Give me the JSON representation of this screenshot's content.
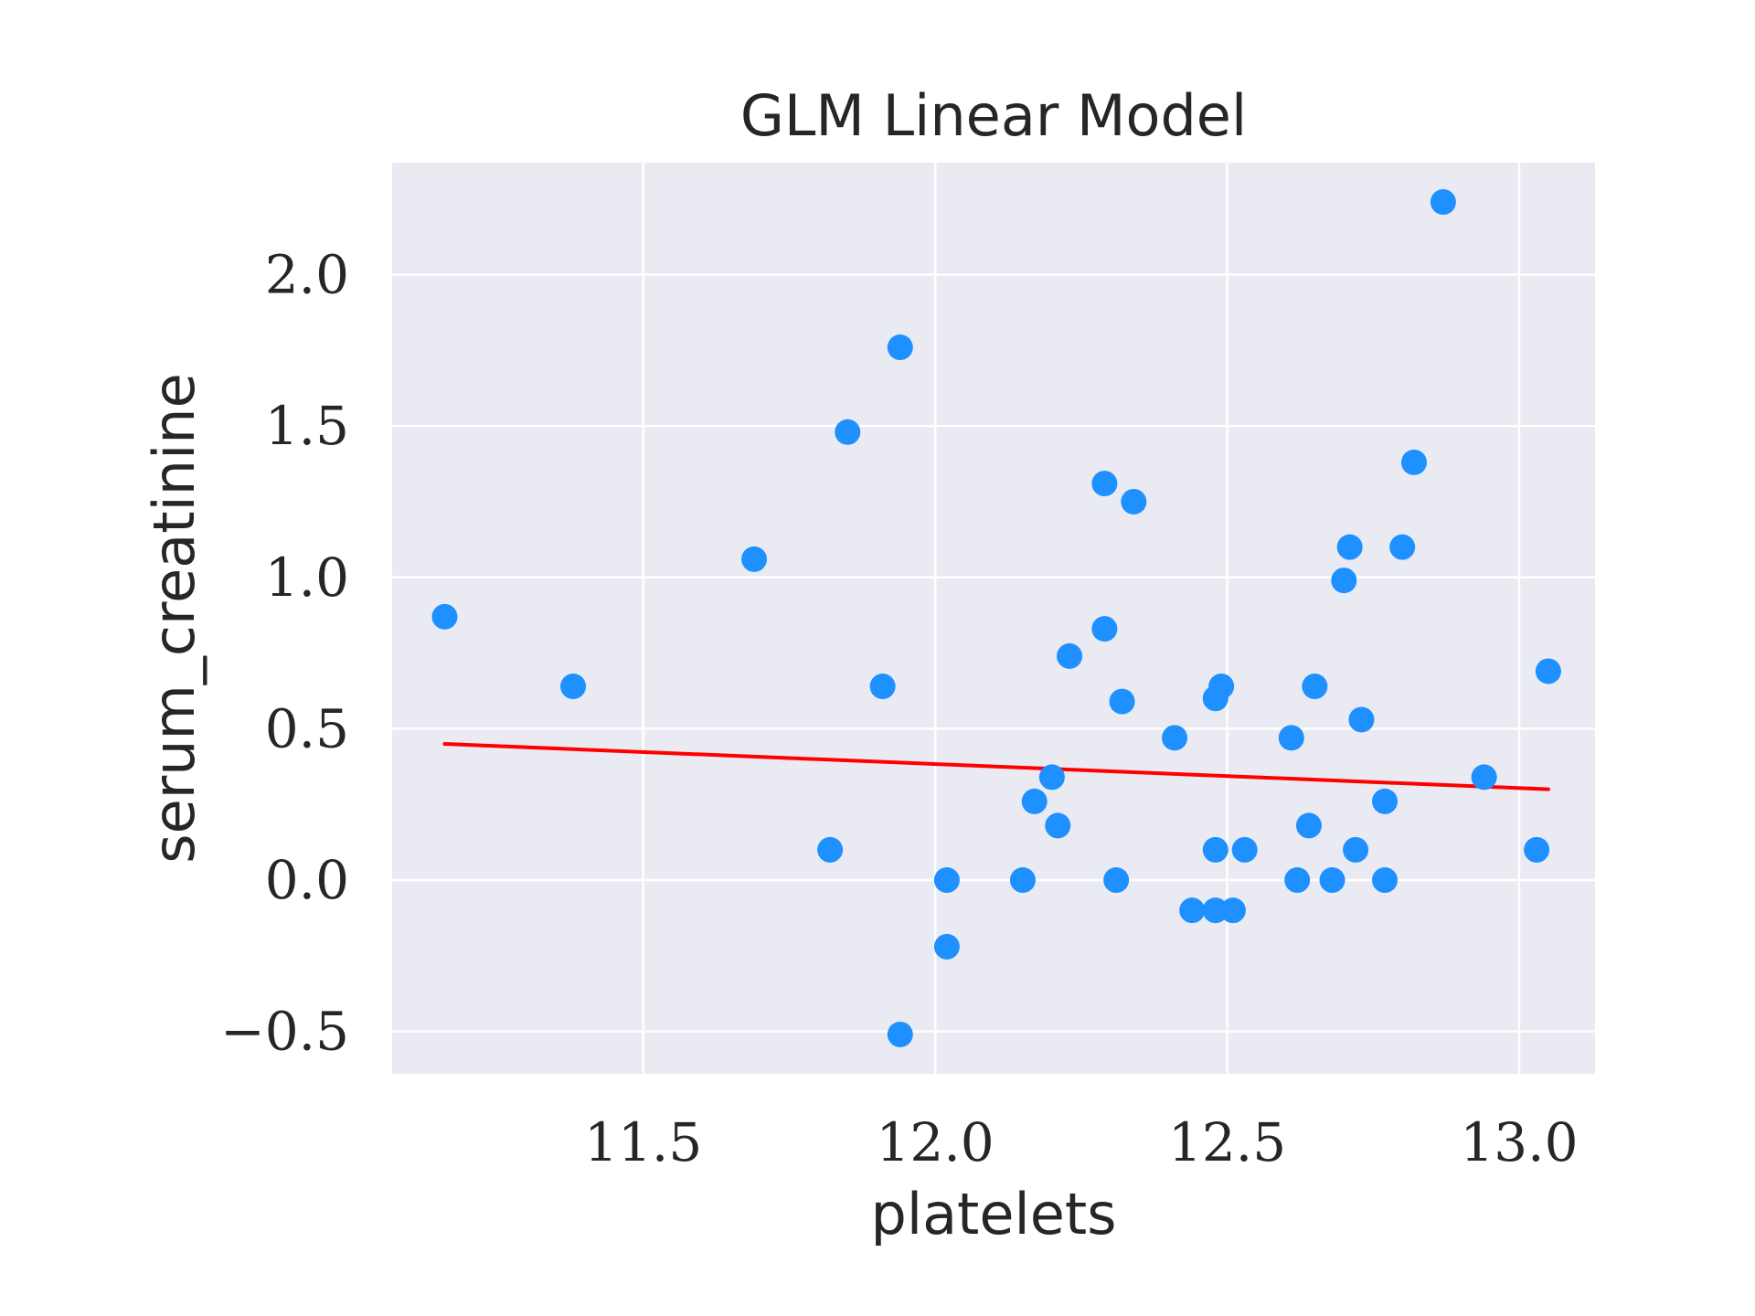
{
  "chart_data": {
    "type": "scatter",
    "title": "GLM Linear Model",
    "xlabel": "platelets",
    "ylabel": "serum_creatinine",
    "xlim": [
      11.07,
      13.13
    ],
    "ylim": [
      -0.64,
      2.37
    ],
    "xticks": [
      11.5,
      12.0,
      12.5,
      13.0
    ],
    "xtick_labels": [
      "11.5",
      "12.0",
      "12.5",
      "13.0"
    ],
    "yticks": [
      -0.5,
      0.0,
      0.5,
      1.0,
      1.5,
      2.0
    ],
    "ytick_labels": [
      "−0.5",
      "0.0",
      "0.5",
      "1.0",
      "1.5",
      "2.0"
    ],
    "grid": true,
    "background": "#EAEAF2",
    "point_color": "#1E90FF",
    "line_color": "#FF0000",
    "points": [
      {
        "x": 11.16,
        "y": 0.87
      },
      {
        "x": 11.38,
        "y": 0.64
      },
      {
        "x": 11.69,
        "y": 1.06
      },
      {
        "x": 11.82,
        "y": 0.1
      },
      {
        "x": 11.85,
        "y": 1.48
      },
      {
        "x": 11.91,
        "y": 0.64
      },
      {
        "x": 11.94,
        "y": 1.76
      },
      {
        "x": 11.94,
        "y": -0.51
      },
      {
        "x": 12.02,
        "y": 0.0
      },
      {
        "x": 12.02,
        "y": -0.22
      },
      {
        "x": 12.15,
        "y": 0.0
      },
      {
        "x": 12.17,
        "y": 0.26
      },
      {
        "x": 12.2,
        "y": 0.34
      },
      {
        "x": 12.21,
        "y": 0.18
      },
      {
        "x": 12.23,
        "y": 0.74
      },
      {
        "x": 12.29,
        "y": 0.83
      },
      {
        "x": 12.29,
        "y": 1.31
      },
      {
        "x": 12.31,
        "y": 0.0
      },
      {
        "x": 12.32,
        "y": 0.59
      },
      {
        "x": 12.34,
        "y": 1.25
      },
      {
        "x": 12.41,
        "y": 0.47
      },
      {
        "x": 12.44,
        "y": -0.1
      },
      {
        "x": 12.48,
        "y": -0.1
      },
      {
        "x": 12.48,
        "y": 0.1
      },
      {
        "x": 12.48,
        "y": 0.6
      },
      {
        "x": 12.49,
        "y": 0.64
      },
      {
        "x": 12.51,
        "y": -0.1
      },
      {
        "x": 12.53,
        "y": 0.1
      },
      {
        "x": 12.61,
        "y": 0.47
      },
      {
        "x": 12.62,
        "y": 0.0
      },
      {
        "x": 12.64,
        "y": 0.18
      },
      {
        "x": 12.65,
        "y": 0.64
      },
      {
        "x": 12.68,
        "y": 0.0
      },
      {
        "x": 12.7,
        "y": 0.99
      },
      {
        "x": 12.71,
        "y": 1.1
      },
      {
        "x": 12.72,
        "y": 0.1
      },
      {
        "x": 12.73,
        "y": 0.53
      },
      {
        "x": 12.77,
        "y": 0.26
      },
      {
        "x": 12.77,
        "y": 0.0
      },
      {
        "x": 12.8,
        "y": 1.1
      },
      {
        "x": 12.82,
        "y": 1.38
      },
      {
        "x": 12.87,
        "y": 2.24
      },
      {
        "x": 12.94,
        "y": 0.34
      },
      {
        "x": 13.03,
        "y": 0.1
      },
      {
        "x": 13.05,
        "y": 0.69
      }
    ],
    "fit_line": {
      "x": [
        11.16,
        13.05
      ],
      "y": [
        0.45,
        0.3
      ]
    }
  }
}
